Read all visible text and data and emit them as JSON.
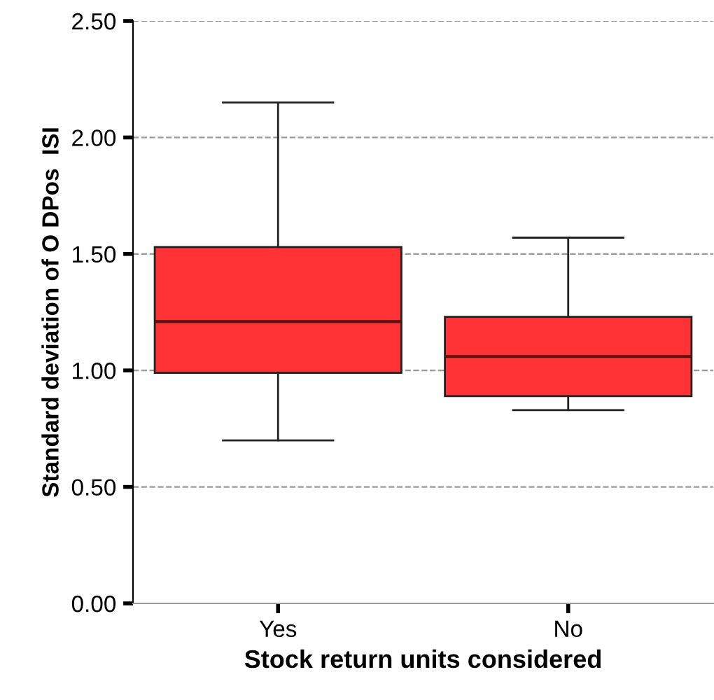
{
  "chart_data": {
    "type": "box",
    "xlabel": "Stock return units considered",
    "ylabel": "Standard deviation of O DPos  ISI",
    "categories": [
      "Yes",
      "No"
    ],
    "color": "#ff3336",
    "boxes": [
      {
        "low": 0.7,
        "q1": 0.99,
        "median": 1.21,
        "q3": 1.53,
        "high": 2.15
      },
      {
        "low": 0.83,
        "q1": 0.89,
        "median": 1.06,
        "q3": 1.23,
        "high": 1.57
      }
    ],
    "ylim": [
      0,
      2.5
    ],
    "yticks": [
      {
        "value": 0,
        "label": "0.00"
      },
      {
        "value": 0.5,
        "label": "0.50"
      },
      {
        "value": 1,
        "label": "1.00"
      },
      {
        "value": 1.5,
        "label": "1.50"
      },
      {
        "value": 2,
        "label": "2.00"
      },
      {
        "value": 2.5,
        "label": "2.50"
      }
    ],
    "grid": "y"
  }
}
